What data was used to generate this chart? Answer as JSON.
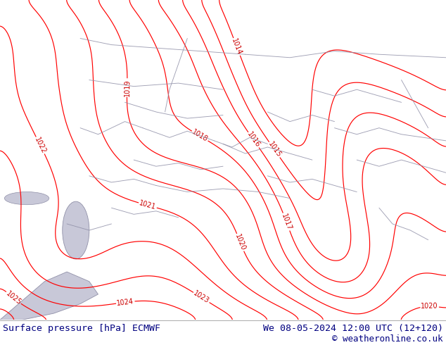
{
  "title_left": "Surface pressure [hPa] ECMWF",
  "title_right": "We 08-05-2024 12:00 UTC (12+120)",
  "copyright": "© weatheronline.co.uk",
  "bg_color": "#b5e87a",
  "water_color": "#c8c8d8",
  "contour_color": "#ff0000",
  "border_color": "#9090a8",
  "label_color": "#cc0000",
  "bottom_text_color": "#000080",
  "bottom_bg_color": "#ffffff",
  "font_size_labels": 7,
  "contour_linewidth": 0.85
}
